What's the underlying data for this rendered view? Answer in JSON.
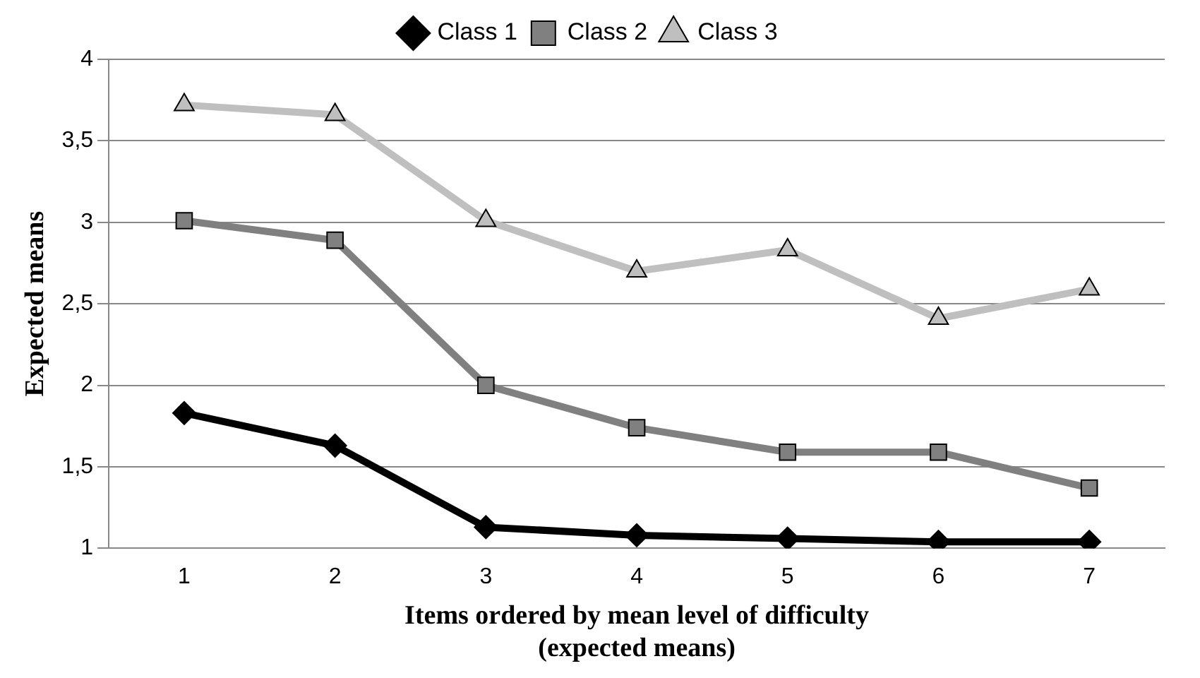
{
  "chart_data": {
    "type": "line",
    "xlabel": "Items ordered by mean level of difficulty\n(expected means)",
    "ylabel": "Expected means",
    "categories": [
      "1",
      "2",
      "3",
      "4",
      "5",
      "6",
      "7"
    ],
    "series": [
      {
        "name": "Class 1",
        "color": "#000000",
        "marker": "diamond",
        "values": [
          1.83,
          1.63,
          1.13,
          1.08,
          1.06,
          1.04,
          1.04
        ]
      },
      {
        "name": "Class 2",
        "color": "#808080",
        "marker": "square",
        "values": [
          3.01,
          2.89,
          2.0,
          1.74,
          1.59,
          1.59,
          1.37
        ]
      },
      {
        "name": "Class 3",
        "color": "#bfbfbf",
        "marker": "triangle",
        "values": [
          3.72,
          3.66,
          3.01,
          2.7,
          2.83,
          2.41,
          2.59
        ]
      }
    ],
    "ylim": [
      1,
      4
    ],
    "yticks": [
      1,
      {
        "value": 1.5,
        "label": "1,5"
      },
      2,
      {
        "value": 2.5,
        "label": "2,5"
      },
      3,
      {
        "value": 3.5,
        "label": "3,5"
      },
      4
    ],
    "grid": "y",
    "legend": "top",
    "line_style": "solid"
  }
}
